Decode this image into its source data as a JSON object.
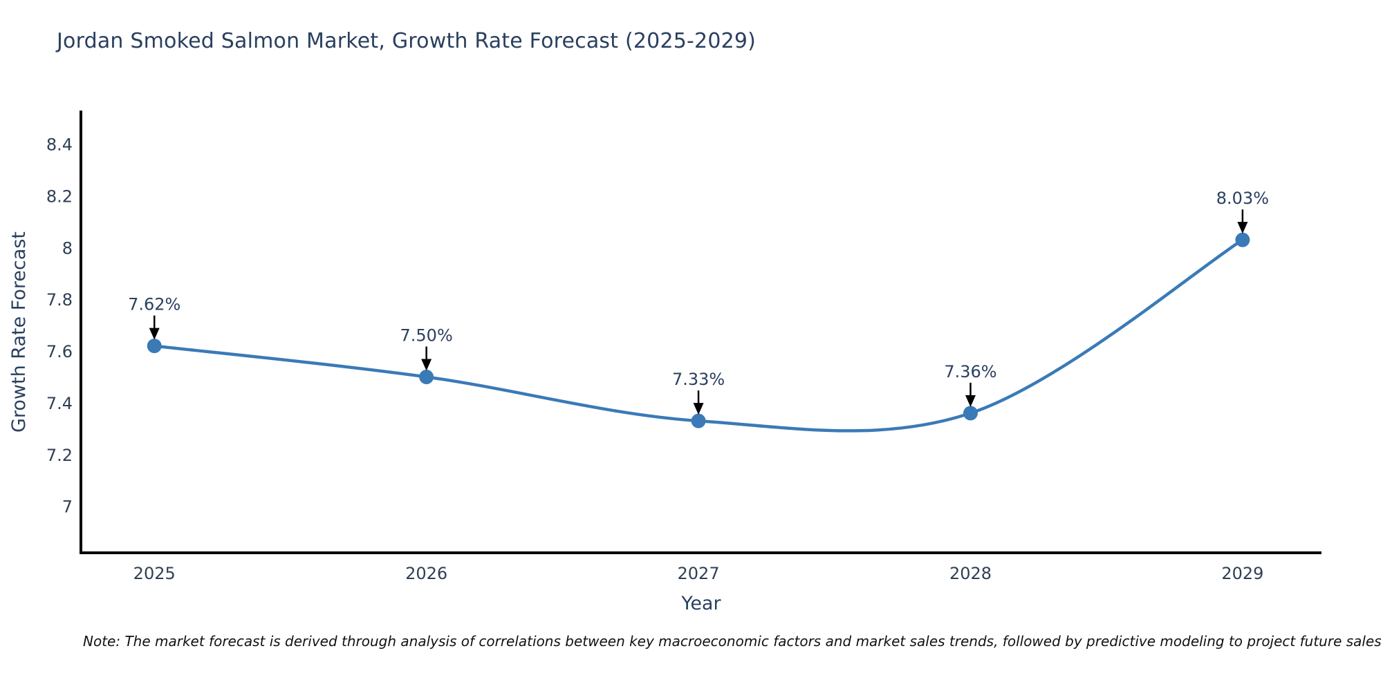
{
  "note": {
    "text": "Note: The market forecast is derived through analysis of correlations between key macroeconomic factors and market sales trends, followed by predictive modeling to project future sales"
  },
  "chart_data": {
    "type": "line",
    "title": "Jordan Smoked Salmon Market, Growth Rate Forecast (2025-2029)",
    "xlabel": "Year",
    "ylabel": "Growth Rate Forecast",
    "x": [
      2025,
      2026,
      2027,
      2028,
      2029
    ],
    "xtick_labels": [
      "2025",
      "2026",
      "2027",
      "2028",
      "2029"
    ],
    "series": [
      {
        "name": "Growth Rate Forecast",
        "values": [
          7.62,
          7.5,
          7.33,
          7.36,
          8.03
        ]
      }
    ],
    "point_labels": [
      "7.62%",
      "7.50%",
      "7.33%",
      "7.36%",
      "8.03%"
    ],
    "yticks": [
      7,
      7.2,
      7.4,
      7.6,
      7.8,
      8,
      8.2,
      8.4
    ],
    "ytick_labels": [
      "7",
      "7.2",
      "7.4",
      "7.6",
      "7.8",
      "8",
      "8.2",
      "8.4"
    ],
    "ylim": [
      6.82,
      8.53
    ],
    "xlim": [
      2024.73,
      2029.29
    ],
    "grid": false,
    "legend": "none",
    "line_shape": "spline",
    "colors": {
      "line": "#3a7ab7",
      "marker": "#3a7ab7",
      "axis": "#000000",
      "tick": "#2f3f55",
      "annotation": "#2a3f5f",
      "arrow": "#000000",
      "text": "#2a3f5f"
    }
  }
}
